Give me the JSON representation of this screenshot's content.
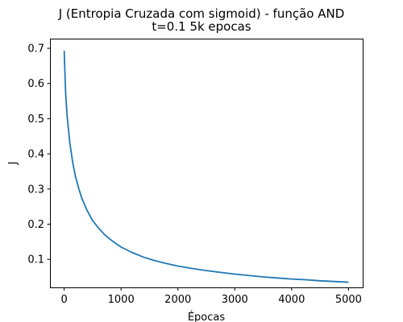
{
  "chart_data": {
    "type": "line",
    "title": "J (Entropia Cruzada com sigmoid) - função AND",
    "subtitle": "t=0.1 5k epocas",
    "xlabel": "Épocas",
    "ylabel": "J",
    "xlim": [
      -250,
      5250
    ],
    "ylim": [
      0.0203,
      0.7275
    ],
    "xticks": [
      0,
      1000,
      2000,
      3000,
      4000,
      5000
    ],
    "xtick_labels": [
      "0",
      "1000",
      "2000",
      "3000",
      "4000",
      "5000"
    ],
    "yticks": [
      0.1,
      0.2,
      0.3,
      0.4,
      0.5,
      0.6,
      0.7
    ],
    "ytick_labels": [
      "0.1",
      "0.2",
      "0.3",
      "0.4",
      "0.5",
      "0.6",
      "0.7"
    ],
    "grid": false,
    "series": [
      {
        "color": "#1f77b4",
        "x": [
          0,
          25,
          50,
          100,
          150,
          200,
          250,
          300,
          400,
          500,
          600,
          700,
          800,
          900,
          1000,
          1200,
          1400,
          1600,
          1800,
          2000,
          2250,
          2500,
          2750,
          3000,
          3250,
          3500,
          3750,
          4000,
          4250,
          4500,
          4750,
          5000
        ],
        "y": [
          0.693,
          0.575,
          0.51,
          0.43,
          0.375,
          0.335,
          0.305,
          0.278,
          0.24,
          0.21,
          0.19,
          0.172,
          0.158,
          0.146,
          0.135,
          0.119,
          0.106,
          0.096,
          0.088,
          0.081,
          0.074,
          0.068,
          0.063,
          0.058,
          0.054,
          0.05,
          0.047,
          0.044,
          0.042,
          0.039,
          0.037,
          0.035
        ]
      }
    ]
  }
}
